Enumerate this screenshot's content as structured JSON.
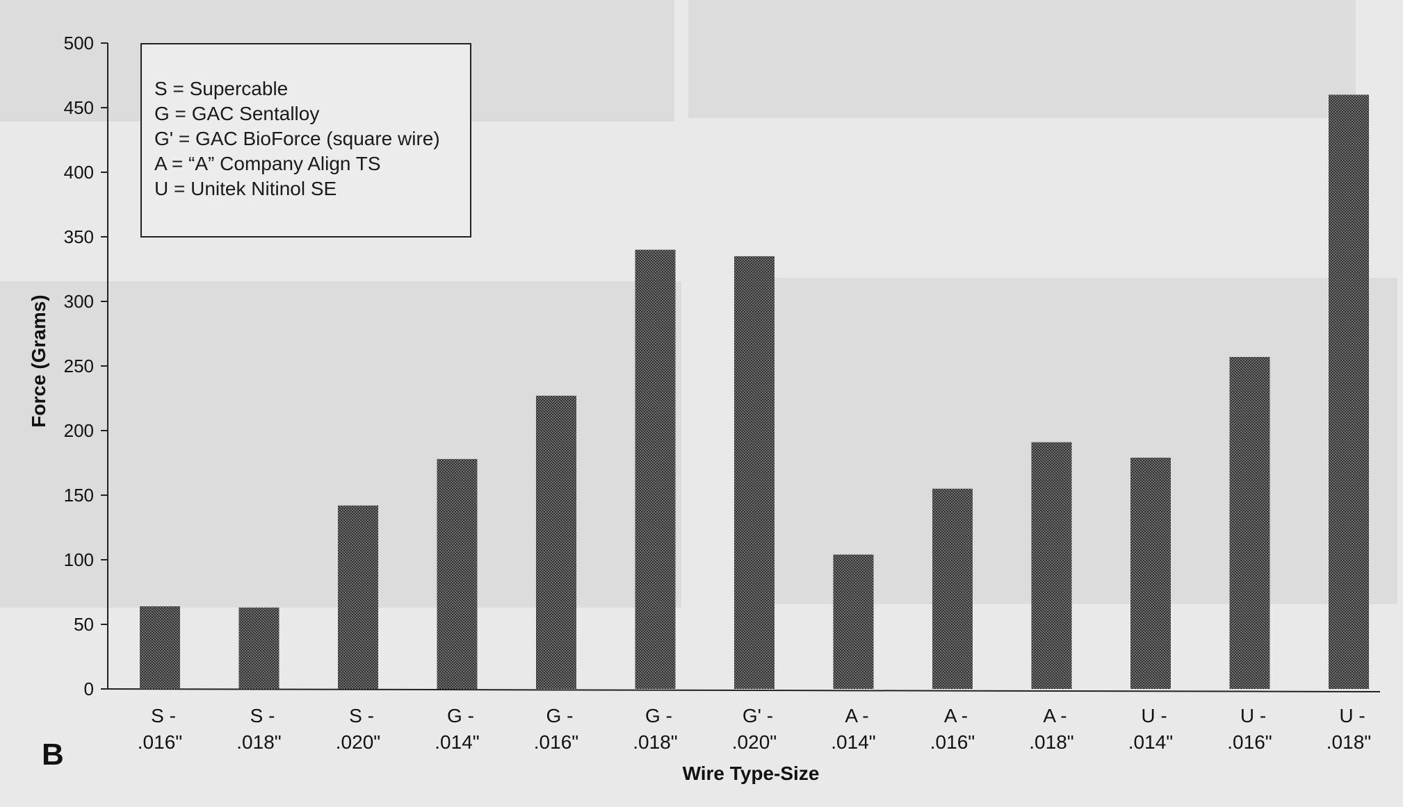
{
  "panel_label": "B",
  "legend": [
    "S = Supercable",
    "G = GAC Sentalloy",
    "G' = GAC BioForce (square wire)",
    "A = “A” Company Align TS",
    "U = Unitek Nitinol SE"
  ],
  "colors": {
    "bar": "#3a3a3a",
    "axis": "#222222",
    "background": "#e9e9e9"
  },
  "chart_data": {
    "type": "bar",
    "title": "",
    "xlabel": "Wire Type-Size",
    "ylabel": "Force (Grams)",
    "ylim": [
      0,
      500
    ],
    "yticks": [
      0,
      50,
      100,
      150,
      200,
      250,
      300,
      350,
      400,
      450,
      500
    ],
    "grid": false,
    "legend_placement": "top-left",
    "categories": [
      [
        "S -",
        ".016\""
      ],
      [
        "S -",
        ".018\""
      ],
      [
        "S -",
        ".020\""
      ],
      [
        "G -",
        ".014\""
      ],
      [
        "G -",
        ".016\""
      ],
      [
        "G -",
        ".018\""
      ],
      [
        "G' -",
        ".020\""
      ],
      [
        "A -",
        ".014\""
      ],
      [
        "A -",
        ".016\""
      ],
      [
        "A -",
        ".018\""
      ],
      [
        "U -",
        ".014\""
      ],
      [
        "U -",
        ".016\""
      ],
      [
        "U -",
        ".018\""
      ]
    ],
    "values": [
      64,
      63,
      142,
      178,
      227,
      340,
      335,
      104,
      155,
      191,
      179,
      257,
      460
    ]
  }
}
